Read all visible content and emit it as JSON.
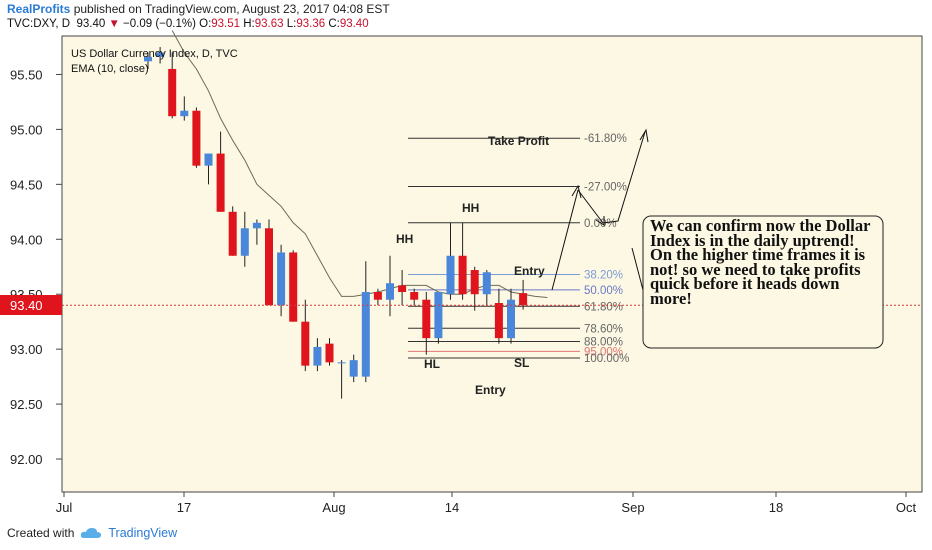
{
  "header": {
    "brand": "RealProfits",
    "published": "published on TradingView.com, August 23, 2017 04:08 EST",
    "symbol": "TVC:DXY, D",
    "last": "93.40",
    "arrow": "▼",
    "change": "−0.09 (−0.1%)",
    "o_label": "O:",
    "o": "93.51",
    "h_label": "H:",
    "h": "93.63",
    "l_label": "L:",
    "l": "93.36",
    "c_label": "C:",
    "c": "93.40"
  },
  "legend": {
    "line1": "US Dollar Currency Index, D, TVC",
    "line2": "EMA (10, close)"
  },
  "footer": {
    "created_with": "Created with",
    "tradingview": "TradingView"
  },
  "colors": {
    "bull": "#4a86d9",
    "bear": "#e0141c",
    "ema": "#6b6b52",
    "price_line": "#d43a3a",
    "background": "#fcf8e3"
  },
  "chart_data": {
    "type": "candlestick",
    "y_ticks": [
      "95.50",
      "95.00",
      "94.50",
      "94.00",
      "93.50",
      "93.00",
      "92.50",
      "92.00"
    ],
    "ylim": [
      91.7,
      95.85
    ],
    "x_ticks": [
      "Jul",
      "17",
      "Aug",
      "14",
      "Sep",
      "18",
      "Oct"
    ],
    "last_price_label": "93.40",
    "last_price": 93.4,
    "candles": [
      {
        "o": 95.62,
        "h": 95.7,
        "l": 95.55,
        "c": 95.66
      },
      {
        "o": 95.66,
        "h": 95.75,
        "l": 95.6,
        "c": 95.7
      },
      {
        "o": 95.55,
        "h": 95.7,
        "l": 95.1,
        "c": 95.12
      },
      {
        "o": 95.12,
        "h": 95.3,
        "l": 95.08,
        "c": 95.17
      },
      {
        "o": 95.17,
        "h": 95.2,
        "l": 94.65,
        "c": 94.67
      },
      {
        "o": 94.67,
        "h": 94.78,
        "l": 94.5,
        "c": 94.78
      },
      {
        "o": 94.78,
        "h": 94.98,
        "l": 94.25,
        "c": 94.25
      },
      {
        "o": 94.25,
        "h": 94.3,
        "l": 93.85,
        "c": 93.85
      },
      {
        "o": 93.85,
        "h": 94.25,
        "l": 93.75,
        "c": 94.1
      },
      {
        "o": 94.1,
        "h": 94.18,
        "l": 93.95,
        "c": 94.15
      },
      {
        "o": 94.1,
        "h": 94.18,
        "l": 93.4,
        "c": 93.4
      },
      {
        "o": 93.4,
        "h": 93.95,
        "l": 93.3,
        "c": 93.88
      },
      {
        "o": 93.88,
        "h": 93.9,
        "l": 93.25,
        "c": 93.25
      },
      {
        "o": 93.25,
        "h": 93.45,
        "l": 92.8,
        "c": 92.85
      },
      {
        "o": 92.85,
        "h": 93.1,
        "l": 92.8,
        "c": 93.02
      },
      {
        "o": 93.05,
        "h": 93.1,
        "l": 92.85,
        "c": 92.88
      },
      {
        "o": 92.88,
        "h": 92.9,
        "l": 92.55,
        "c": 92.88
      },
      {
        "o": 92.75,
        "h": 92.95,
        "l": 92.7,
        "c": 92.9
      },
      {
        "o": 92.75,
        "h": 93.8,
        "l": 92.7,
        "c": 93.52
      },
      {
        "o": 93.52,
        "h": 93.55,
        "l": 93.4,
        "c": 93.45
      },
      {
        "o": 93.45,
        "h": 93.85,
        "l": 93.3,
        "c": 93.6
      },
      {
        "o": 93.58,
        "h": 93.72,
        "l": 93.4,
        "c": 93.52
      },
      {
        "o": 93.52,
        "h": 93.55,
        "l": 93.4,
        "c": 93.45
      },
      {
        "o": 93.45,
        "h": 93.52,
        "l": 92.95,
        "c": 93.1
      },
      {
        "o": 93.1,
        "h": 93.52,
        "l": 93.05,
        "c": 93.52
      },
      {
        "o": 93.5,
        "h": 94.15,
        "l": 93.45,
        "c": 93.85
      },
      {
        "o": 93.85,
        "h": 94.15,
        "l": 93.45,
        "c": 93.5
      },
      {
        "o": 93.72,
        "h": 93.75,
        "l": 93.35,
        "c": 93.5
      },
      {
        "o": 93.5,
        "h": 93.72,
        "l": 93.4,
        "c": 93.7
      },
      {
        "o": 93.42,
        "h": 93.55,
        "l": 93.05,
        "c": 93.1
      },
      {
        "o": 93.1,
        "h": 93.55,
        "l": 93.05,
        "c": 93.45
      },
      {
        "o": 93.51,
        "h": 93.63,
        "l": 93.36,
        "c": 93.4
      }
    ],
    "ema": [
      95.9,
      95.7,
      95.55,
      95.35,
      95.1,
      94.9,
      94.72,
      94.5,
      94.4,
      94.3,
      94.15,
      94.05,
      93.85,
      93.65,
      93.48,
      93.48,
      93.5,
      93.52,
      93.55,
      93.58,
      93.58,
      93.58,
      93.52,
      93.5,
      93.5,
      93.55,
      93.58,
      93.58,
      93.52,
      93.5,
      93.48,
      93.47
    ],
    "fib_levels": [
      {
        "label": "-61.80%",
        "value": 94.92
      },
      {
        "label": "-27.00%",
        "value": 94.48
      },
      {
        "label": "0.00%",
        "value": 94.15
      },
      {
        "label": "38.20%",
        "value": 93.68
      },
      {
        "label": "50.00%",
        "value": 93.54
      },
      {
        "label": "61.80%",
        "value": 93.39
      },
      {
        "label": "78.60%",
        "value": 93.19
      },
      {
        "label": "88.00%",
        "value": 93.07
      },
      {
        "label": "95.00%",
        "value": 92.98
      },
      {
        "label": "100.00%",
        "value": 92.92
      }
    ],
    "annotations": {
      "take_profit": "Take Profit",
      "hh1": "HH",
      "hh2": "HH",
      "hl": "HL",
      "sl": "SL",
      "entry_top": "Entry",
      "entry_bottom": "Entry",
      "note": "We can confirm now the Dollar Index is in the daily uptrend! On the higher time frames it is not! so we need to take profits quick before it heads down more!"
    }
  }
}
